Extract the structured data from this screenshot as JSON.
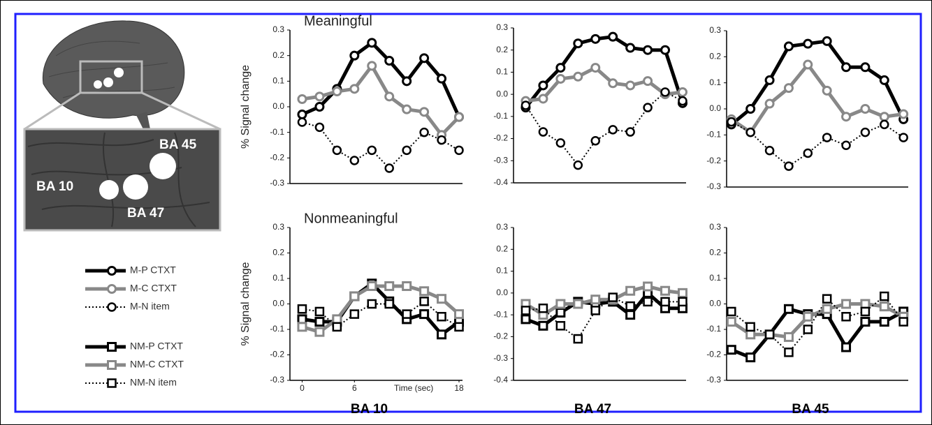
{
  "brain_labels": [
    "BA 45",
    "BA 10",
    "BA 47"
  ],
  "chart_data": [
    {
      "type": "line",
      "title": "Meaningful",
      "ylabel": "% Signal change",
      "marker": "circle",
      "x": [
        0,
        2,
        4,
        6,
        8,
        10,
        12,
        14,
        16,
        18
      ],
      "xlim": [
        -1.4,
        18.4
      ],
      "ylim": [
        -0.3,
        0.3
      ],
      "yticks": [
        0.3,
        0.2,
        0.1,
        {
          "value": 0,
          "label": "0.0"
        },
        -0.1,
        -0.2,
        -0.3
      ],
      "series": [
        {
          "name": "M-P CTXT",
          "color": "#000000",
          "line_style": "solid",
          "values": [
            -0.03,
            0.0,
            0.07,
            0.2,
            0.25,
            0.18,
            0.1,
            0.19,
            0.11,
            -0.04
          ]
        },
        {
          "name": "M-C CTXT",
          "color": "#888888",
          "line_style": "solid",
          "values": [
            0.03,
            0.04,
            0.06,
            0.07,
            0.16,
            0.04,
            -0.01,
            -0.02,
            -0.11,
            -0.04
          ]
        },
        {
          "name": "M-N item",
          "color": "#000000",
          "line_style": "dotted",
          "values": [
            -0.06,
            -0.08,
            -0.17,
            -0.21,
            -0.17,
            -0.24,
            -0.17,
            -0.1,
            -0.13,
            -0.17
          ]
        }
      ]
    },
    {
      "type": "line",
      "marker": "circle",
      "x": [
        0,
        2,
        4,
        6,
        8,
        10,
        12,
        14,
        16,
        18
      ],
      "xlim": [
        -1.4,
        18.4
      ],
      "ylim": [
        -0.4,
        0.3
      ],
      "yticks": [
        0.3,
        0.2,
        0.1,
        {
          "value": 0,
          "label": "0.0"
        },
        -0.1,
        -0.2,
        -0.3,
        -0.4
      ],
      "series": [
        {
          "name": "M-P CTXT",
          "color": "#000000",
          "line_style": "solid",
          "values": [
            -0.06,
            0.04,
            0.12,
            0.23,
            0.25,
            0.26,
            0.21,
            0.2,
            0.2,
            -0.04
          ]
        },
        {
          "name": "M-C CTXT",
          "color": "#888888",
          "line_style": "solid",
          "values": [
            -0.03,
            -0.02,
            0.07,
            0.08,
            0.12,
            0.05,
            0.04,
            0.06,
            0.0,
            0.01
          ]
        },
        {
          "name": "M-N item",
          "color": "#000000",
          "line_style": "dotted",
          "values": [
            -0.05,
            -0.17,
            -0.22,
            -0.32,
            -0.21,
            -0.16,
            -0.17,
            -0.06,
            0.01,
            -0.03
          ]
        }
      ]
    },
    {
      "type": "line",
      "marker": "circle",
      "x": [
        0,
        2,
        4,
        6,
        8,
        10,
        12,
        14,
        16,
        18
      ],
      "xlim": [
        -0.5,
        18.5
      ],
      "ylim": [
        -0.3,
        0.3
      ],
      "yticks": [
        0.3,
        0.2,
        0.1,
        {
          "value": 0,
          "label": "0.0"
        },
        -0.1,
        -0.2,
        -0.3
      ],
      "series": [
        {
          "name": "M-P CTXT",
          "color": "#000000",
          "line_style": "solid",
          "values": [
            -0.06,
            0.0,
            0.11,
            0.24,
            0.25,
            0.26,
            0.16,
            0.16,
            0.11,
            -0.04
          ]
        },
        {
          "name": "M-C CTXT",
          "color": "#888888",
          "line_style": "solid",
          "values": [
            -0.04,
            -0.09,
            0.02,
            0.08,
            0.17,
            0.07,
            -0.03,
            0.0,
            -0.03,
            -0.02
          ]
        },
        {
          "name": "M-N item",
          "color": "#000000",
          "line_style": "dotted",
          "values": [
            -0.05,
            -0.09,
            -0.16,
            -0.22,
            -0.17,
            -0.11,
            -0.14,
            -0.09,
            -0.06,
            -0.11
          ]
        }
      ]
    },
    {
      "type": "line",
      "title": "Nonmeaningful",
      "ylabel": "% Signal change",
      "xlabel": "Time (sec)",
      "caption": "BA 10",
      "marker": "square",
      "x": [
        0,
        2,
        4,
        6,
        8,
        10,
        12,
        14,
        16,
        18
      ],
      "xlim": [
        -1.4,
        18.4
      ],
      "xticks": [
        0,
        6,
        18
      ],
      "ylim": [
        -0.3,
        0.3
      ],
      "yticks": [
        0.3,
        0.2,
        0.1,
        {
          "value": 0,
          "label": "0.0"
        },
        -0.1,
        -0.2,
        -0.3
      ],
      "series": [
        {
          "name": "NM-P CTXT",
          "color": "#000000",
          "line_style": "solid",
          "values": [
            -0.06,
            -0.07,
            -0.07,
            0.03,
            0.08,
            0.01,
            -0.06,
            -0.04,
            -0.12,
            -0.07
          ]
        },
        {
          "name": "NM-C CTXT",
          "color": "#888888",
          "line_style": "solid",
          "values": [
            -0.09,
            -0.11,
            -0.06,
            0.03,
            0.07,
            0.07,
            0.07,
            0.05,
            0.02,
            -0.04
          ]
        },
        {
          "name": "NM-N item",
          "color": "#000000",
          "line_style": "dotted",
          "values": [
            -0.02,
            -0.03,
            -0.09,
            -0.04,
            0.0,
            0.0,
            -0.04,
            0.01,
            -0.05,
            -0.09
          ]
        }
      ]
    },
    {
      "type": "line",
      "caption": "BA 47",
      "marker": "square",
      "x": [
        0,
        2,
        4,
        6,
        8,
        10,
        12,
        14,
        16,
        18
      ],
      "xlim": [
        -1.4,
        18.4
      ],
      "ylim": [
        -0.4,
        0.3
      ],
      "yticks": [
        0.3,
        0.2,
        0.1,
        {
          "value": 0,
          "label": "0.0"
        },
        -0.1,
        -0.2,
        -0.3,
        -0.4
      ],
      "series": [
        {
          "name": "NM-P CTXT",
          "color": "#000000",
          "line_style": "solid",
          "values": [
            -0.12,
            -0.15,
            -0.09,
            -0.04,
            -0.05,
            -0.04,
            -0.1,
            0.0,
            -0.07,
            -0.07
          ]
        },
        {
          "name": "NM-C CTXT",
          "color": "#888888",
          "line_style": "solid",
          "values": [
            -0.05,
            -0.1,
            -0.05,
            -0.05,
            -0.03,
            -0.03,
            0.01,
            0.03,
            0.01,
            0.0
          ]
        },
        {
          "name": "NM-N item",
          "color": "#000000",
          "line_style": "dotted",
          "values": [
            -0.08,
            -0.07,
            -0.15,
            -0.21,
            -0.08,
            -0.02,
            -0.06,
            -0.04,
            -0.04,
            -0.04
          ]
        }
      ]
    },
    {
      "type": "line",
      "caption": "BA 45",
      "marker": "square",
      "x": [
        0,
        2,
        4,
        6,
        8,
        10,
        12,
        14,
        16,
        18
      ],
      "xlim": [
        -0.5,
        18.5
      ],
      "ylim": [
        -0.3,
        0.3
      ],
      "yticks": [
        0.3,
        0.2,
        0.1,
        {
          "value": 0,
          "label": "0.0"
        },
        -0.1,
        -0.2,
        -0.3
      ],
      "series": [
        {
          "name": "NM-P CTXT",
          "color": "#000000",
          "line_style": "solid",
          "values": [
            -0.18,
            -0.21,
            -0.12,
            -0.02,
            -0.04,
            -0.04,
            -0.17,
            -0.07,
            -0.07,
            -0.03
          ]
        },
        {
          "name": "NM-C CTXT",
          "color": "#888888",
          "line_style": "solid",
          "values": [
            -0.07,
            -0.12,
            -0.12,
            -0.13,
            -0.05,
            -0.02,
            0.0,
            0.0,
            -0.01,
            -0.05
          ]
        },
        {
          "name": "NM-N item",
          "color": "#000000",
          "line_style": "dotted",
          "values": [
            -0.03,
            -0.09,
            -0.12,
            -0.19,
            -0.1,
            0.02,
            -0.05,
            -0.03,
            0.03,
            -0.07
          ]
        }
      ]
    }
  ]
}
